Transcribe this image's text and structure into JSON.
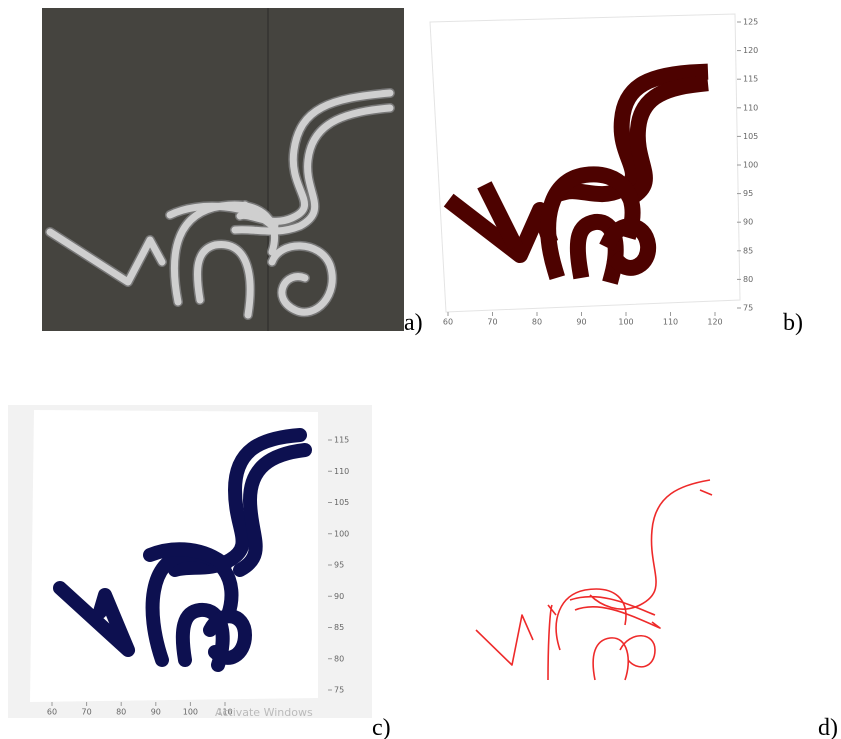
{
  "panels": [
    {
      "label": "a)"
    },
    {
      "label": "b)",
      "xticks": [
        60,
        70,
        80,
        90,
        100,
        110,
        120
      ],
      "yticks": [
        125,
        120,
        115,
        110,
        105,
        100,
        95,
        90,
        85,
        80,
        75
      ]
    },
    {
      "label": "c)",
      "xticks": [
        60,
        70,
        80,
        90,
        100,
        110
      ],
      "yticks": [
        115,
        110,
        105,
        100,
        95,
        90,
        85,
        80,
        75
      ],
      "watermark": "Activate Windows"
    },
    {
      "label": "d)"
    }
  ]
}
